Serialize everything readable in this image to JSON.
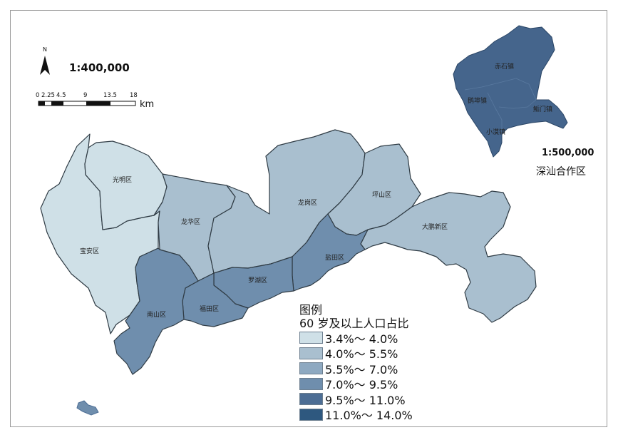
{
  "map": {
    "main_scale": "1:400,000",
    "north_label": "N",
    "scalebar_ticks": [
      "0",
      "2.25",
      "4.5",
      "9",
      "13.5",
      "18"
    ],
    "scalebar_unit": "km"
  },
  "regions": [
    {
      "name": "光明区",
      "class": "3.4%～4.0%",
      "color": "#cfe0e7"
    },
    {
      "name": "宝安区",
      "class": "3.4%～4.0%",
      "color": "#cfe0e7"
    },
    {
      "name": "龙华区",
      "class": "4.0%～5.5%",
      "color": "#a9bfcf"
    },
    {
      "name": "龙岗区",
      "class": "4.0%～5.5%",
      "color": "#a9bfcf"
    },
    {
      "name": "坪山区",
      "class": "4.0%～5.5%",
      "color": "#a9bfcf"
    },
    {
      "name": "大鹏新区",
      "class": "4.0%～5.5%",
      "color": "#a9bfcf"
    },
    {
      "name": "罗湖区",
      "class": "7.0%～9.5%",
      "color": "#6f8ead"
    },
    {
      "name": "盐田区",
      "class": "7.0%～9.5%",
      "color": "#6f8ead"
    },
    {
      "name": "福田区",
      "class": "7.0%～9.5%",
      "color": "#6f8ead"
    },
    {
      "name": "南山区",
      "class": "7.0%～9.5%",
      "color": "#6f8ead"
    }
  ],
  "inset": {
    "scale": "1:500,000",
    "name": "深汕合作区",
    "color": "#45658c",
    "towns": [
      "赤石镇",
      "鹅埠镇",
      "鮜门镇",
      "小漠镇"
    ]
  },
  "legend": {
    "title_line1": "图例",
    "title_line2": "60 岁及以上人口占比",
    "items": [
      {
        "label": "3.4%～ 4.0%",
        "color": "#cfe0e7"
      },
      {
        "label": "4.0%～ 5.5%",
        "color": "#a9bfcf"
      },
      {
        "label": "5.5%～ 7.0%",
        "color": "#8ea9c1"
      },
      {
        "label": "7.0%～ 9.5%",
        "color": "#6f8ead"
      },
      {
        "label": "9.5%～ 11.0%",
        "color": "#4d6e95"
      },
      {
        "label": "11.0%～ 14.0%",
        "color": "#2e587f"
      }
    ]
  }
}
